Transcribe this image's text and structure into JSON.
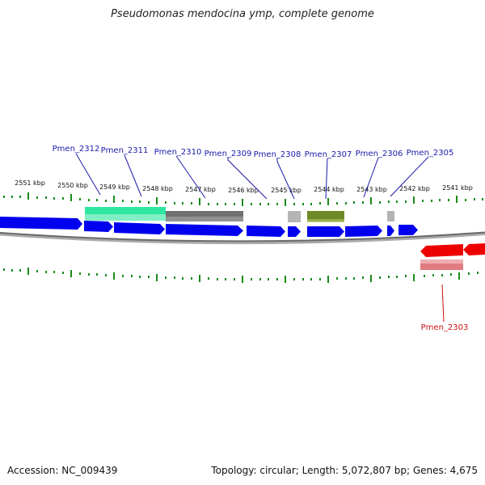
{
  "header": {
    "title": "Pseudomonas mendocina ymp, complete genome"
  },
  "footer": {
    "accession": "Accession: NC_009439",
    "stats": "Topology: circular; Length: 5,072,807 bp; Genes: 4,675"
  },
  "scale": {
    "labels": [
      "2551 kbp",
      "2550 kbp",
      "2549 kbp",
      "2548 kbp",
      "2547 kbp",
      "2546 kbp",
      "2545 kbp",
      "2544 kbp",
      "2543 kbp",
      "2542 kbp",
      "2541 kbp"
    ]
  },
  "genes_forward": [
    {
      "label": "Pmen_2312"
    },
    {
      "label": "Pmen_2311"
    },
    {
      "label": "Pmen_2310"
    },
    {
      "label": "Pmen_2309"
    },
    {
      "label": "Pmen_2308"
    },
    {
      "label": "Pmen_2307"
    },
    {
      "label": "Pmen_2306"
    },
    {
      "label": "Pmen_2305"
    }
  ],
  "genes_reverse": [
    {
      "label": "Pmen_2303"
    }
  ],
  "colors": {
    "forward_gene": "#0000ee",
    "reverse_gene": "#ee0000",
    "forward_label": "#1a1aa8",
    "reverse_label": "#cc1111",
    "tick": "#1a8a1a",
    "backbone": "#777777",
    "feature_teal": "#2ee6a0",
    "feature_gray": "#707070",
    "feature_lightgray": "#b4b4b4",
    "feature_olive": "#6e8a28",
    "feature_pink": "#e07c80"
  }
}
